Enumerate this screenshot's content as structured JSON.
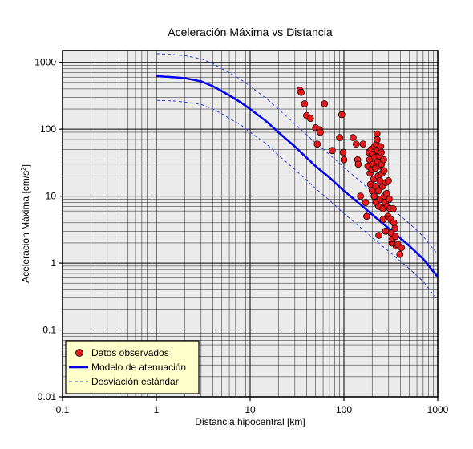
{
  "chart_data": {
    "type": "scatter",
    "title": "Aceleración Máxima vs Distancia",
    "xlabel": "Distancia hipocentral [km]",
    "ylabel_main": "Aceleración Máxima [cm/s",
    "ylabel_sup": "2",
    "ylabel_end": "]",
    "x_scale": "log",
    "y_scale": "log",
    "xlim": [
      0.1,
      1000
    ],
    "ylim": [
      0.01,
      1500
    ],
    "grid": true,
    "legend_position": "bottom-left",
    "x_ticks": [
      {
        "value": 0.1,
        "label": "0.1"
      },
      {
        "value": 1,
        "label": "1"
      },
      {
        "value": 10,
        "label": "10"
      },
      {
        "value": 100,
        "label": "100"
      },
      {
        "value": 1000,
        "label": "1000"
      }
    ],
    "y_ticks": [
      {
        "value": 0.01,
        "label": "0.01"
      },
      {
        "value": 0.1,
        "label": "0.1"
      },
      {
        "value": 1,
        "label": "1"
      },
      {
        "value": 10,
        "label": "10"
      },
      {
        "value": 100,
        "label": "100"
      },
      {
        "value": 1000,
        "label": "1000"
      }
    ],
    "legend": [
      {
        "label": "Datos observados",
        "kind": "marker"
      },
      {
        "label": "Modelo de atenuación",
        "kind": "solid"
      },
      {
        "label": "Desviación estándar",
        "kind": "dashed"
      }
    ],
    "colors": {
      "points": "#e8191a",
      "model": "#0000ee",
      "std": "#3344dd",
      "plot_bg": "#ebebeb",
      "legend_bg": "#ffffcc"
    },
    "model": {
      "x": [
        1,
        1.5,
        2,
        3,
        4,
        5,
        6,
        8,
        10,
        15,
        20,
        30,
        50,
        70,
        100,
        150,
        200,
        300,
        500,
        700,
        1000
      ],
      "y": [
        620,
        600,
        580,
        520,
        440,
        370,
        320,
        250,
        200,
        130,
        90,
        55,
        28,
        19,
        12,
        7.5,
        5.3,
        3.3,
        1.8,
        1.15,
        0.62
      ]
    },
    "std_upper": {
      "x": [
        1,
        1.5,
        2,
        3,
        4,
        5,
        6,
        8,
        10,
        15,
        20,
        30,
        50,
        70,
        100,
        150,
        200,
        300,
        500,
        700,
        1000
      ],
      "y": [
        1350,
        1310,
        1260,
        1130,
        960,
        800,
        700,
        550,
        440,
        285,
        200,
        120,
        62,
        42,
        27,
        16.5,
        11.5,
        7.2,
        3.9,
        2.5,
        1.35
      ]
    },
    "std_lower": {
      "x": [
        1,
        1.5,
        2,
        3,
        4,
        5,
        6,
        8,
        10,
        15,
        20,
        30,
        50,
        70,
        100,
        150,
        200,
        300,
        500,
        700,
        1000
      ],
      "y": [
        270,
        265,
        255,
        235,
        200,
        170,
        145,
        115,
        90,
        60,
        41,
        25,
        13,
        8.7,
        5.5,
        3.4,
        2.4,
        1.5,
        0.82,
        0.53,
        0.28
      ]
    },
    "points": [
      {
        "x": 34,
        "y": 380
      },
      {
        "x": 35,
        "y": 355
      },
      {
        "x": 38,
        "y": 240
      },
      {
        "x": 40,
        "y": 160
      },
      {
        "x": 44,
        "y": 145
      },
      {
        "x": 50,
        "y": 105
      },
      {
        "x": 52,
        "y": 60
      },
      {
        "x": 55,
        "y": 98
      },
      {
        "x": 56,
        "y": 90
      },
      {
        "x": 62,
        "y": 240
      },
      {
        "x": 75,
        "y": 48
      },
      {
        "x": 90,
        "y": 75
      },
      {
        "x": 95,
        "y": 165
      },
      {
        "x": 98,
        "y": 45
      },
      {
        "x": 100,
        "y": 35
      },
      {
        "x": 125,
        "y": 75
      },
      {
        "x": 135,
        "y": 60
      },
      {
        "x": 140,
        "y": 35
      },
      {
        "x": 142,
        "y": 30
      },
      {
        "x": 150,
        "y": 10
      },
      {
        "x": 160,
        "y": 60
      },
      {
        "x": 170,
        "y": 8
      },
      {
        "x": 175,
        "y": 5
      },
      {
        "x": 180,
        "y": 28
      },
      {
        "x": 185,
        "y": 45
      },
      {
        "x": 188,
        "y": 35
      },
      {
        "x": 190,
        "y": 22
      },
      {
        "x": 192,
        "y": 15
      },
      {
        "x": 195,
        "y": 50
      },
      {
        "x": 198,
        "y": 25
      },
      {
        "x": 200,
        "y": 12
      },
      {
        "x": 202,
        "y": 42
      },
      {
        "x": 205,
        "y": 30
      },
      {
        "x": 208,
        "y": 18
      },
      {
        "x": 210,
        "y": 10
      },
      {
        "x": 212,
        "y": 55
      },
      {
        "x": 214,
        "y": 38
      },
      {
        "x": 216,
        "y": 26
      },
      {
        "x": 218,
        "y": 14
      },
      {
        "x": 220,
        "y": 8
      },
      {
        "x": 222,
        "y": 60
      },
      {
        "x": 225,
        "y": 85
      },
      {
        "x": 226,
        "y": 70
      },
      {
        "x": 228,
        "y": 48
      },
      {
        "x": 230,
        "y": 33
      },
      {
        "x": 232,
        "y": 20
      },
      {
        "x": 233,
        "y": 12
      },
      {
        "x": 235,
        "y": 7
      },
      {
        "x": 236,
        "y": 2.6
      },
      {
        "x": 238,
        "y": 40
      },
      {
        "x": 240,
        "y": 28
      },
      {
        "x": 242,
        "y": 17
      },
      {
        "x": 245,
        "y": 9
      },
      {
        "x": 247,
        "y": 55
      },
      {
        "x": 250,
        "y": 45
      },
      {
        "x": 252,
        "y": 30
      },
      {
        "x": 255,
        "y": 22
      },
      {
        "x": 258,
        "y": 14
      },
      {
        "x": 260,
        "y": 6.5
      },
      {
        "x": 262,
        "y": 4.5
      },
      {
        "x": 265,
        "y": 35
      },
      {
        "x": 268,
        "y": 24
      },
      {
        "x": 270,
        "y": 10
      },
      {
        "x": 275,
        "y": 8
      },
      {
        "x": 278,
        "y": 3
      },
      {
        "x": 280,
        "y": 16
      },
      {
        "x": 285,
        "y": 11
      },
      {
        "x": 290,
        "y": 7
      },
      {
        "x": 295,
        "y": 5
      },
      {
        "x": 298,
        "y": 17
      },
      {
        "x": 305,
        "y": 9
      },
      {
        "x": 310,
        "y": 6.5
      },
      {
        "x": 315,
        "y": 4.5
      },
      {
        "x": 320,
        "y": 2.8
      },
      {
        "x": 325,
        "y": 2
      },
      {
        "x": 330,
        "y": 2.3
      },
      {
        "x": 335,
        "y": 6.5
      },
      {
        "x": 340,
        "y": 4
      },
      {
        "x": 350,
        "y": 3.3
      },
      {
        "x": 355,
        "y": 2.5
      },
      {
        "x": 360,
        "y": 1.8
      },
      {
        "x": 375,
        "y": 1.9
      },
      {
        "x": 395,
        "y": 1.35
      },
      {
        "x": 410,
        "y": 1.7
      }
    ]
  }
}
